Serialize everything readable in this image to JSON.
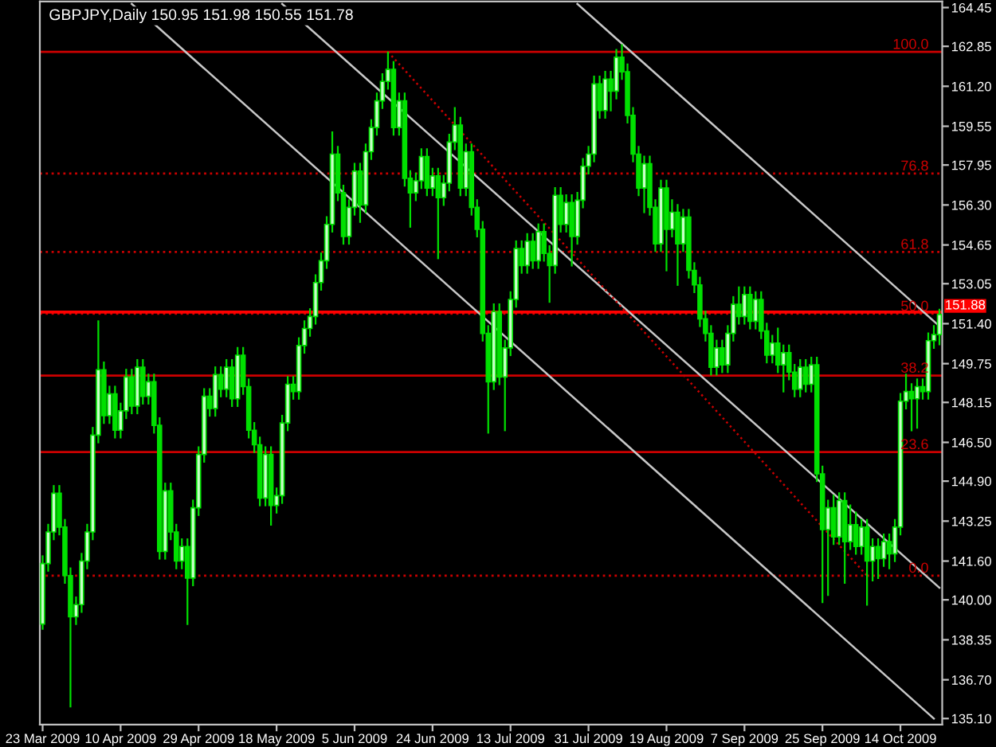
{
  "chart_data": {
    "type": "candlestick",
    "title": "GBPJPY,Daily 150.95 151.98 150.55 151.78",
    "categories": [
      "23 Mar 2009",
      null,
      null,
      null,
      null,
      null,
      null,
      null,
      null,
      null,
      null,
      null,
      null,
      null,
      "10 Apr 2009",
      null,
      null,
      null,
      null,
      null,
      null,
      null,
      null,
      null,
      null,
      null,
      null,
      null,
      "29 Apr 2009",
      null,
      null,
      null,
      null,
      null,
      null,
      null,
      null,
      null,
      null,
      null,
      null,
      null,
      "18 May 2009",
      null,
      null,
      null,
      null,
      null,
      null,
      null,
      null,
      null,
      null,
      null,
      null,
      null,
      "5 Jun 2009",
      null,
      null,
      null,
      null,
      null,
      null,
      null,
      null,
      null,
      null,
      null,
      null,
      null,
      "24 Jun 2009",
      null,
      null,
      null,
      null,
      null,
      null,
      null,
      null,
      null,
      null,
      null,
      null,
      null,
      "13 Jul 2009",
      null,
      null,
      null,
      null,
      null,
      null,
      null,
      null,
      null,
      null,
      null,
      null,
      null,
      "31 Jul 2009",
      null,
      null,
      null,
      null,
      null,
      null,
      null,
      null,
      null,
      null,
      null,
      null,
      null,
      "19 Aug 2009",
      null,
      null,
      null,
      null,
      null,
      null,
      null,
      null,
      null,
      null,
      null,
      null,
      null,
      "7 Sep 2009",
      null,
      null,
      null,
      null,
      null,
      null,
      null,
      null,
      null,
      null,
      null,
      null,
      null,
      "25 Sep 2009",
      null,
      null,
      null,
      null,
      null,
      null,
      null,
      null,
      null,
      null,
      null,
      null,
      null,
      "14 Oct 2009",
      null,
      null,
      null,
      null,
      null,
      null,
      null
    ],
    "color": "#00e000",
    "ohlc": [
      [
        139.0,
        141.8,
        138.8,
        141.5
      ],
      [
        141.5,
        143.1,
        141.2,
        142.8
      ],
      [
        142.8,
        144.7,
        142.5,
        144.4
      ],
      [
        144.4,
        144.7,
        142.7,
        143.0
      ],
      [
        143.0,
        143.3,
        140.7,
        141.0
      ],
      [
        141.0,
        141.3,
        135.6,
        139.3
      ],
      [
        139.3,
        140.1,
        139.0,
        139.8
      ],
      [
        139.8,
        141.9,
        139.5,
        141.6
      ],
      [
        141.6,
        143.1,
        141.3,
        142.8
      ],
      [
        142.8,
        147.1,
        142.5,
        146.8
      ],
      [
        146.8,
        151.5,
        146.5,
        149.5
      ],
      [
        149.5,
        149.8,
        147.3,
        147.6
      ],
      [
        147.6,
        148.8,
        147.3,
        148.5
      ],
      [
        148.5,
        148.8,
        146.7,
        147.0
      ],
      [
        147.0,
        148.1,
        146.7,
        147.8
      ],
      [
        147.8,
        149.5,
        147.5,
        149.2
      ],
      [
        149.2,
        149.5,
        147.7,
        148.0
      ],
      [
        148.0,
        149.9,
        147.7,
        149.6
      ],
      [
        149.6,
        149.9,
        148.1,
        148.4
      ],
      [
        148.4,
        149.3,
        148.1,
        149.0
      ],
      [
        149.0,
        149.3,
        146.9,
        147.2
      ],
      [
        147.2,
        147.5,
        141.7,
        142.0
      ],
      [
        142.0,
        144.8,
        141.7,
        144.5
      ],
      [
        144.5,
        144.8,
        142.5,
        142.8
      ],
      [
        142.8,
        143.1,
        141.3,
        141.6
      ],
      [
        141.6,
        142.5,
        141.3,
        142.2
      ],
      [
        142.2,
        142.5,
        139.0,
        140.9
      ],
      [
        140.9,
        144.1,
        140.6,
        143.8
      ],
      [
        143.8,
        146.3,
        143.5,
        146.0
      ],
      [
        146.0,
        148.7,
        145.7,
        148.4
      ],
      [
        148.4,
        148.7,
        147.6,
        147.9
      ],
      [
        147.9,
        149.6,
        147.6,
        149.3
      ],
      [
        149.3,
        149.6,
        148.4,
        148.7
      ],
      [
        148.7,
        149.9,
        148.4,
        149.6
      ],
      [
        149.6,
        149.9,
        148.0,
        148.3
      ],
      [
        148.3,
        150.4,
        148.0,
        150.1
      ],
      [
        150.1,
        150.4,
        148.5,
        148.8
      ],
      [
        148.8,
        149.1,
        146.7,
        147.0
      ],
      [
        147.0,
        147.3,
        146.1,
        146.4
      ],
      [
        146.4,
        146.7,
        143.9,
        144.2
      ],
      [
        144.2,
        146.3,
        143.9,
        146.0
      ],
      [
        146.0,
        146.3,
        143.1,
        143.9
      ],
      [
        143.9,
        144.6,
        143.6,
        144.3
      ],
      [
        144.3,
        147.6,
        144.0,
        147.3
      ],
      [
        147.3,
        149.2,
        147.0,
        148.9
      ],
      [
        148.9,
        149.2,
        148.3,
        148.6
      ],
      [
        148.6,
        150.8,
        148.3,
        150.5
      ],
      [
        150.5,
        151.5,
        150.2,
        151.2
      ],
      [
        151.2,
        152.0,
        150.9,
        151.7
      ],
      [
        151.7,
        153.4,
        151.4,
        153.1
      ],
      [
        153.1,
        154.3,
        152.8,
        154.0
      ],
      [
        154.0,
        155.8,
        153.7,
        155.5
      ],
      [
        155.5,
        159.3,
        155.2,
        158.4
      ],
      [
        158.4,
        158.7,
        156.5,
        156.8
      ],
      [
        156.8,
        157.1,
        154.7,
        155.0
      ],
      [
        155.0,
        156.5,
        154.7,
        156.2
      ],
      [
        156.2,
        158.0,
        155.9,
        157.7
      ],
      [
        157.7,
        158.0,
        155.6,
        156.3
      ],
      [
        156.3,
        158.8,
        156.0,
        158.5
      ],
      [
        158.5,
        159.8,
        158.2,
        159.5
      ],
      [
        159.5,
        160.9,
        159.2,
        160.6
      ],
      [
        160.6,
        161.7,
        160.3,
        161.4
      ],
      [
        161.4,
        162.6,
        161.1,
        161.9
      ],
      [
        161.9,
        162.2,
        159.2,
        159.5
      ],
      [
        159.5,
        160.9,
        159.2,
        160.6
      ],
      [
        160.6,
        160.9,
        157.1,
        157.4
      ],
      [
        157.4,
        157.7,
        155.4,
        156.8
      ],
      [
        156.8,
        157.6,
        156.5,
        157.3
      ],
      [
        157.3,
        158.6,
        157.0,
        158.3
      ],
      [
        158.3,
        158.6,
        156.7,
        157.0
      ],
      [
        157.0,
        157.8,
        156.7,
        157.5
      ],
      [
        157.5,
        157.8,
        154.1,
        156.6
      ],
      [
        156.6,
        157.5,
        156.3,
        157.2
      ],
      [
        157.2,
        159.2,
        156.9,
        158.9
      ],
      [
        158.9,
        160.3,
        158.6,
        159.6
      ],
      [
        159.6,
        159.9,
        156.7,
        157.0
      ],
      [
        157.0,
        158.8,
        156.7,
        158.5
      ],
      [
        158.5,
        158.8,
        155.9,
        156.2
      ],
      [
        156.2,
        156.5,
        155.0,
        155.3
      ],
      [
        155.3,
        155.6,
        150.7,
        151.0
      ],
      [
        151.0,
        151.3,
        146.9,
        149.0
      ],
      [
        149.0,
        152.2,
        148.7,
        151.9
      ],
      [
        151.9,
        152.2,
        148.9,
        149.2
      ],
      [
        149.2,
        150.7,
        147.0,
        150.4
      ],
      [
        150.4,
        152.7,
        150.1,
        152.4
      ],
      [
        152.4,
        154.8,
        152.1,
        154.5
      ],
      [
        154.5,
        154.8,
        153.5,
        153.8
      ],
      [
        153.8,
        155.1,
        153.5,
        154.8
      ],
      [
        154.8,
        155.1,
        153.7,
        154.0
      ],
      [
        154.0,
        155.5,
        153.7,
        155.2
      ],
      [
        155.2,
        155.5,
        154.0,
        154.3
      ],
      [
        154.3,
        154.6,
        152.3,
        153.8
      ],
      [
        153.8,
        157.0,
        153.5,
        156.7
      ],
      [
        156.7,
        157.0,
        155.2,
        155.5
      ],
      [
        155.5,
        156.7,
        155.2,
        156.4
      ],
      [
        156.4,
        156.7,
        153.8,
        155.0
      ],
      [
        155.0,
        156.8,
        154.7,
        156.5
      ],
      [
        156.5,
        158.2,
        156.2,
        157.9
      ],
      [
        157.9,
        158.7,
        157.6,
        158.4
      ],
      [
        158.4,
        161.6,
        158.1,
        161.3
      ],
      [
        161.3,
        161.6,
        159.9,
        160.2
      ],
      [
        160.2,
        161.8,
        159.9,
        161.5
      ],
      [
        161.5,
        161.8,
        160.2,
        161.0
      ],
      [
        161.0,
        162.7,
        160.7,
        162.4
      ],
      [
        162.4,
        162.9,
        161.5,
        161.8
      ],
      [
        161.8,
        162.1,
        159.7,
        160.0
      ],
      [
        160.0,
        160.3,
        158.1,
        158.4
      ],
      [
        158.4,
        158.7,
        156.7,
        157.0
      ],
      [
        157.0,
        158.3,
        156.0,
        158.0
      ],
      [
        158.0,
        158.3,
        155.9,
        156.2
      ],
      [
        156.2,
        156.5,
        154.4,
        154.7
      ],
      [
        154.7,
        157.3,
        154.4,
        157.0
      ],
      [
        157.0,
        157.3,
        153.6,
        155.3
      ],
      [
        155.3,
        156.5,
        155.0,
        156.0
      ],
      [
        156.0,
        156.3,
        153.0,
        154.7
      ],
      [
        154.7,
        156.1,
        154.4,
        155.8
      ],
      [
        155.8,
        156.1,
        153.3,
        153.6
      ],
      [
        153.6,
        153.9,
        152.7,
        153.0
      ],
      [
        153.0,
        153.3,
        151.3,
        151.6
      ],
      [
        151.6,
        151.9,
        150.7,
        151.0
      ],
      [
        151.0,
        151.3,
        149.3,
        149.6
      ],
      [
        149.6,
        150.7,
        149.3,
        150.4
      ],
      [
        150.4,
        150.7,
        149.4,
        149.7
      ],
      [
        149.7,
        151.3,
        149.4,
        151.0
      ],
      [
        151.0,
        152.5,
        150.7,
        152.2
      ],
      [
        152.2,
        152.9,
        151.4,
        151.7
      ],
      [
        151.7,
        152.9,
        151.4,
        152.6
      ],
      [
        152.6,
        152.9,
        151.2,
        151.5
      ],
      [
        151.5,
        152.7,
        151.2,
        152.4
      ],
      [
        152.4,
        152.7,
        150.8,
        151.1
      ],
      [
        151.1,
        151.4,
        149.8,
        150.1
      ],
      [
        150.1,
        150.9,
        149.8,
        150.6
      ],
      [
        150.6,
        151.2,
        149.4,
        149.7
      ],
      [
        149.7,
        150.5,
        148.6,
        150.2
      ],
      [
        150.2,
        150.5,
        149.1,
        149.4
      ],
      [
        149.4,
        149.7,
        148.4,
        148.7
      ],
      [
        148.7,
        149.9,
        148.4,
        149.6
      ],
      [
        149.6,
        149.9,
        148.6,
        148.9
      ],
      [
        148.9,
        150.0,
        148.6,
        149.7
      ],
      [
        149.7,
        150.0,
        144.9,
        145.2
      ],
      [
        145.2,
        145.5,
        139.9,
        142.9
      ],
      [
        142.9,
        144.1,
        140.2,
        143.8
      ],
      [
        143.8,
        144.3,
        142.3,
        142.6
      ],
      [
        142.6,
        144.4,
        142.3,
        144.1
      ],
      [
        144.1,
        144.4,
        140.7,
        142.4
      ],
      [
        142.4,
        143.9,
        142.1,
        143.1
      ],
      [
        143.1,
        143.6,
        141.9,
        142.2
      ],
      [
        142.2,
        143.3,
        141.9,
        143.0
      ],
      [
        143.0,
        143.3,
        139.8,
        141.6
      ],
      [
        141.6,
        142.5,
        140.8,
        142.2
      ],
      [
        142.2,
        142.5,
        140.9,
        141.7
      ],
      [
        141.7,
        142.7,
        141.4,
        142.4
      ],
      [
        142.4,
        142.7,
        141.3,
        141.9
      ],
      [
        141.9,
        143.3,
        141.6,
        143.0
      ],
      [
        143.0,
        148.5,
        142.7,
        148.2
      ],
      [
        148.2,
        149.3,
        147.9,
        148.6
      ],
      [
        148.6,
        148.9,
        147.0,
        148.3
      ],
      [
        148.3,
        149.1,
        147.1,
        148.8
      ],
      [
        148.8,
        149.1,
        148.3,
        148.6
      ],
      [
        148.6,
        151.0,
        148.3,
        150.7
      ],
      [
        150.7,
        151.3,
        150.4,
        150.95
      ],
      [
        150.95,
        151.98,
        150.55,
        151.78
      ]
    ],
    "series": [
      {
        "type": "line",
        "color": "#c8c8c8",
        "values": [
          null,
          null,
          null,
          null,
          null,
          null,
          null,
          null,
          null,
          null,
          null,
          null,
          null,
          null,
          null,
          null,
          164.6,
          null,
          null,
          null,
          null,
          null,
          null,
          null,
          null,
          null,
          null,
          null,
          null,
          null,
          null,
          null,
          null,
          null,
          null,
          null,
          null,
          null,
          null,
          null,
          null,
          null,
          null,
          null,
          null,
          null,
          null,
          null,
          null,
          null,
          null,
          null,
          null,
          null,
          null,
          null,
          null,
          null,
          null,
          null,
          null,
          null,
          null,
          null,
          null,
          null,
          null,
          null,
          null,
          null,
          null,
          null,
          null,
          null,
          null,
          null,
          null,
          null,
          null,
          null,
          null,
          null,
          null,
          null,
          null,
          null,
          null,
          null,
          null,
          null,
          null,
          null,
          null,
          null,
          null,
          null,
          null,
          null,
          null,
          null,
          null,
          null,
          null,
          null,
          null,
          null,
          null,
          null,
          null,
          null,
          null,
          null,
          null,
          null,
          null,
          null,
          null,
          null,
          null,
          null,
          null,
          null,
          null,
          null,
          null,
          null,
          null,
          null,
          null,
          null,
          null,
          null,
          null,
          null,
          null,
          null,
          null,
          null,
          null,
          null,
          null,
          null,
          null,
          null,
          null,
          null,
          null,
          null,
          null,
          null,
          null,
          null,
          null,
          null,
          null,
          null,
          null,
          null,
          null,
          null,
          135.1,
          null
        ]
      },
      {
        "type": "line",
        "color": "#c8c8c8",
        "values": [
          null,
          null,
          null,
          null,
          null,
          null,
          null,
          null,
          null,
          null,
          null,
          null,
          null,
          null,
          null,
          null,
          null,
          null,
          null,
          null,
          null,
          null,
          null,
          null,
          null,
          null,
          null,
          null,
          null,
          null,
          null,
          null,
          null,
          null,
          null,
          null,
          null,
          null,
          null,
          null,
          null,
          null,
          null,
          164.6,
          null,
          null,
          null,
          null,
          null,
          null,
          null,
          null,
          null,
          null,
          null,
          null,
          null,
          null,
          null,
          null,
          null,
          null,
          null,
          null,
          null,
          null,
          null,
          null,
          null,
          null,
          null,
          null,
          null,
          null,
          null,
          null,
          null,
          null,
          null,
          null,
          null,
          null,
          null,
          null,
          null,
          null,
          null,
          null,
          null,
          null,
          null,
          null,
          null,
          null,
          null,
          null,
          null,
          null,
          null,
          null,
          null,
          null,
          null,
          null,
          null,
          null,
          null,
          null,
          null,
          null,
          null,
          null,
          null,
          null,
          null,
          null,
          null,
          null,
          null,
          null,
          null,
          null,
          null,
          null,
          null,
          null,
          null,
          null,
          null,
          null,
          null,
          null,
          null,
          null,
          null,
          null,
          null,
          null,
          null,
          null,
          null,
          null,
          null,
          null,
          null,
          null,
          null,
          null,
          null,
          null,
          null,
          null,
          null,
          null,
          null,
          null,
          null,
          null,
          null,
          null,
          null,
          140.5
        ]
      },
      {
        "type": "line",
        "color": "#c8c8c8",
        "values": [
          null,
          null,
          null,
          null,
          null,
          null,
          null,
          null,
          null,
          null,
          null,
          null,
          null,
          null,
          null,
          null,
          null,
          null,
          null,
          null,
          null,
          null,
          null,
          null,
          null,
          null,
          null,
          null,
          null,
          null,
          null,
          null,
          null,
          null,
          null,
          null,
          null,
          null,
          null,
          null,
          null,
          null,
          null,
          null,
          null,
          null,
          null,
          null,
          null,
          null,
          null,
          null,
          null,
          null,
          null,
          null,
          null,
          null,
          null,
          null,
          null,
          null,
          null,
          null,
          null,
          null,
          null,
          null,
          null,
          null,
          null,
          null,
          null,
          null,
          null,
          null,
          null,
          null,
          null,
          null,
          null,
          null,
          null,
          null,
          null,
          null,
          null,
          null,
          null,
          null,
          null,
          null,
          null,
          null,
          null,
          null,
          164.6,
          null,
          null,
          null,
          null,
          null,
          null,
          null,
          null,
          null,
          null,
          null,
          null,
          null,
          null,
          null,
          null,
          null,
          null,
          null,
          null,
          null,
          null,
          null,
          null,
          null,
          null,
          null,
          null,
          null,
          null,
          null,
          null,
          null,
          null,
          null,
          null,
          null,
          null,
          null,
          null,
          null,
          null,
          null,
          null,
          null,
          null,
          null,
          null,
          null,
          null,
          null,
          null,
          null,
          null,
          null,
          null,
          null,
          null,
          null,
          null,
          null,
          null,
          null,
          null,
          151.3
        ]
      },
      {
        "type": "line",
        "color": "#cc0000",
        "line_style": "dotted",
        "values": [
          null,
          null,
          null,
          null,
          null,
          null,
          null,
          null,
          null,
          null,
          null,
          null,
          null,
          null,
          null,
          null,
          null,
          null,
          null,
          null,
          null,
          null,
          null,
          null,
          null,
          null,
          null,
          null,
          null,
          null,
          null,
          null,
          null,
          null,
          null,
          null,
          null,
          null,
          null,
          null,
          null,
          null,
          null,
          null,
          null,
          null,
          null,
          null,
          null,
          null,
          null,
          null,
          null,
          null,
          null,
          null,
          null,
          null,
          null,
          null,
          null,
          null,
          162.62,
          null,
          null,
          null,
          null,
          null,
          null,
          null,
          null,
          null,
          null,
          null,
          null,
          null,
          null,
          null,
          null,
          null,
          null,
          null,
          null,
          null,
          null,
          null,
          null,
          null,
          null,
          null,
          null,
          null,
          null,
          null,
          null,
          null,
          null,
          null,
          null,
          null,
          null,
          null,
          null,
          null,
          null,
          null,
          null,
          null,
          null,
          null,
          null,
          null,
          null,
          null,
          null,
          null,
          null,
          null,
          null,
          null,
          null,
          null,
          null,
          null,
          null,
          null,
          null,
          null,
          null,
          null,
          null,
          null,
          null,
          null,
          null,
          null,
          null,
          null,
          null,
          null,
          null,
          null,
          null,
          null,
          null,
          null,
          null,
          null,
          141.0,
          null,
          null,
          null,
          null,
          null,
          null,
          null,
          null,
          null,
          null,
          null,
          null,
          null
        ]
      }
    ],
    "ref_lines": [
      {
        "axis": "y",
        "value": 162.62,
        "color": "#cc0000",
        "line_style": "solid"
      },
      {
        "axis": "y",
        "value": 157.6,
        "color": "#cc0000",
        "line_style": "dotted"
      },
      {
        "axis": "y",
        "value": 154.36,
        "color": "#cc0000",
        "line_style": "dotted"
      },
      {
        "axis": "y",
        "value": 151.81,
        "color": "#cc0000",
        "line_style": "dotted"
      },
      {
        "axis": "y",
        "value": 149.26,
        "color": "#cc0000",
        "line_style": "solid"
      },
      {
        "axis": "y",
        "value": 146.1,
        "color": "#cc0000",
        "line_style": "solid"
      },
      {
        "axis": "y",
        "value": 141.0,
        "color": "#cc0000",
        "line_style": "dotted"
      },
      {
        "axis": "y",
        "value": 151.88,
        "label": "151.88",
        "color": "#ff0000",
        "line_style": "solid"
      }
    ],
    "annotations": [
      {
        "text": "100.0",
        "y": 162.62
      },
      {
        "text": "76.8",
        "y": 157.6
      },
      {
        "text": "61.8",
        "y": 154.36
      },
      {
        "text": "50.0",
        "y": 151.81
      },
      {
        "text": "38.2",
        "y": 149.26
      },
      {
        "text": "23.6",
        "y": 146.1
      },
      {
        "text": "0.0",
        "y": 141.0
      }
    ],
    "ylim": [
      134.85,
      164.7
    ],
    "yticks": [
      {
        "value": 164.45,
        "label": "164.45"
      },
      {
        "value": 162.85,
        "label": "162.85"
      },
      {
        "value": 161.2,
        "label": "161.20"
      },
      {
        "value": 159.55,
        "label": "159.55"
      },
      {
        "value": 157.95,
        "label": "157.95"
      },
      {
        "value": 156.3,
        "label": "156.30"
      },
      {
        "value": 154.65,
        "label": "154.65"
      },
      {
        "value": 153.05,
        "label": "153.05"
      },
      {
        "value": 151.4,
        "label": "151.40"
      },
      {
        "value": 149.75,
        "label": "149.75"
      },
      {
        "value": 148.15,
        "label": "148.15"
      },
      {
        "value": 146.5,
        "label": "146.50"
      },
      {
        "value": 144.9,
        "label": "144.90"
      },
      {
        "value": 143.25,
        "label": "143.25"
      },
      {
        "value": 141.6,
        "label": "141.60"
      },
      {
        "value": 140.0,
        "label": "140.00"
      },
      {
        "value": 138.35,
        "label": "138.35"
      },
      {
        "value": 136.7,
        "label": "136.70"
      },
      {
        "value": 135.1,
        "label": "135.10"
      }
    ],
    "grid": false,
    "legend": false
  }
}
